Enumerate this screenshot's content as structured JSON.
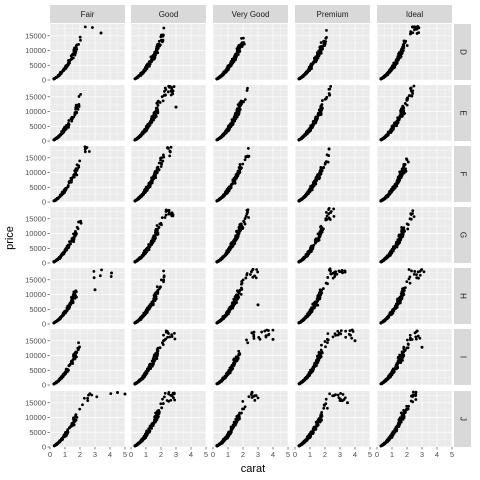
{
  "chart_data": {
    "type": "scatter",
    "title": "",
    "xlabel": "carat",
    "ylabel": "price",
    "xlim": [
      0,
      5
    ],
    "ylim": [
      0,
      19000
    ],
    "x_ticks": [
      "0",
      "1",
      "2",
      "3",
      "4",
      "5"
    ],
    "y_ticks": [
      "0",
      "5000",
      "10000",
      "15000"
    ],
    "cut_levels": [
      "Fair",
      "Good",
      "Very Good",
      "Premium",
      "Ideal"
    ],
    "color_levels": [
      "D",
      "E",
      "F",
      "G",
      "H",
      "I",
      "J"
    ],
    "facet_row_var": "color",
    "facet_col_var": "cut",
    "grid": true,
    "legend": "none",
    "point_color": "#000000",
    "panel_bg": "#ebebeb",
    "strip_bg": "#d9d9d9",
    "grid_color": "#ffffff",
    "notes": "Price vs carat scatter faceted by diamond cut (columns) and color (rows); dense clouds of points representative of the diamonds dataset.",
    "max_carat": {
      "D": [
        3.4,
        2.2,
        2.1,
        2.1,
        2.8
      ],
      "E": [
        2.1,
        3.0,
        2.3,
        2.6,
        2.5
      ],
      "F": [
        2.7,
        2.7,
        2.4,
        2.3,
        2.2
      ],
      "G": [
        2.1,
        2.8,
        2.4,
        2.6,
        2.5
      ],
      "H": [
        4.1,
        2.3,
        3.0,
        3.5,
        3.3
      ],
      "I": [
        2.1,
        3.0,
        4.0,
        4.0,
        3.0
      ],
      "J": [
        5.0,
        3.0,
        3.0,
        3.5,
        2.6
      ]
    },
    "outliers": [
      {
        "color": "D",
        "cut": "Fair",
        "carat": 3.4,
        "price": 15964
      },
      {
        "color": "E",
        "cut": "Good",
        "carat": 3.0,
        "price": 11500
      },
      {
        "color": "H",
        "cut": "Fair",
        "carat": 4.1,
        "price": 17300
      },
      {
        "color": "H",
        "cut": "Fair",
        "carat": 3.0,
        "price": 11600
      },
      {
        "color": "H",
        "cut": "Very Good",
        "carat": 3.0,
        "price": 6500
      },
      {
        "color": "I",
        "cut": "Very Good",
        "carat": 4.0,
        "price": 15500
      },
      {
        "color": "I",
        "cut": "Premium",
        "carat": 4.0,
        "price": 15000
      },
      {
        "color": "I",
        "cut": "Ideal",
        "carat": 3.0,
        "price": 12800
      },
      {
        "color": "J",
        "cut": "Fair",
        "carat": 4.5,
        "price": 18500
      },
      {
        "color": "J",
        "cut": "Fair",
        "carat": 5.0,
        "price": 18000
      },
      {
        "color": "J",
        "cut": "Premium",
        "carat": 3.5,
        "price": 15000
      }
    ]
  }
}
